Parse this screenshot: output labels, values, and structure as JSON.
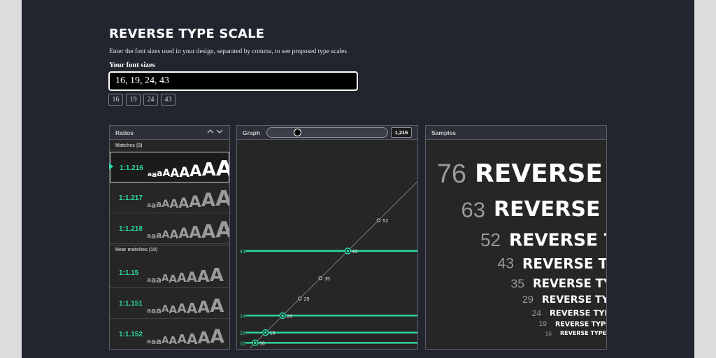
{
  "header": {
    "title": "REVERSE TYPE SCALE",
    "subtitle": "Enter the font sizes used in your design, separated by comma, to see proposed type scales",
    "input_label": "Your font sizes",
    "input_value": "16, 19, 24, 43"
  },
  "chips": [
    "16",
    "19",
    "24",
    "43"
  ],
  "ratios_panel": {
    "title": "Ratios",
    "matches_label": "Matches (3)",
    "near_label": "Near matches (10)",
    "matches": [
      {
        "ratio": "1:1.216",
        "selected": true
      },
      {
        "ratio": "1:1.217",
        "selected": false
      },
      {
        "ratio": "1:1.218",
        "selected": false
      }
    ],
    "near_matches": [
      {
        "ratio": "1:1.15"
      },
      {
        "ratio": "1:1.151"
      },
      {
        "ratio": "1:1.152"
      }
    ],
    "sample_glyph": "A",
    "sample_glyph_small": "a"
  },
  "graph_panel": {
    "title": "Graph",
    "ratio_value": "1,216",
    "slider_fraction": 0.24,
    "colors": {
      "match": "#2fd8a8",
      "curve": "#7a7a7a",
      "point": "#d0d0d0"
    },
    "points": [
      {
        "label": "16",
        "value": 16,
        "match": true
      },
      {
        "label": "19",
        "value": 19,
        "match": true
      },
      {
        "label": "24",
        "value": 24,
        "match": true
      },
      {
        "label": "29",
        "value": 29,
        "match": false
      },
      {
        "label": "35",
        "value": 35,
        "match": false
      },
      {
        "label": "43",
        "value": 43,
        "match": true
      },
      {
        "label": "52",
        "value": 52,
        "match": false
      }
    ],
    "match_line_labels": [
      "43",
      "24",
      "19",
      "16"
    ]
  },
  "samples_panel": {
    "title": "Samples",
    "sample_text": "REVERSE TYPE SCALE",
    "sizes": [
      "76",
      "63",
      "52",
      "43",
      "35",
      "29",
      "24",
      "19",
      "16"
    ]
  }
}
